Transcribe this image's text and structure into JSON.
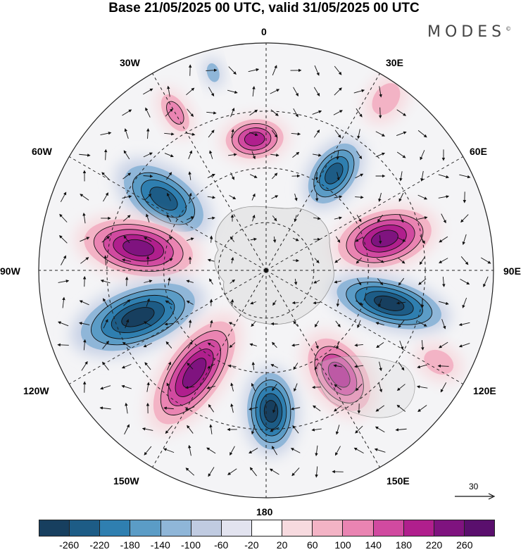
{
  "title": "Base 21/05/2025 00 UTC, valid 31/05/2025 00 UTC",
  "brand": "MODES",
  "brand_mark": "©",
  "longitude_labels": {
    "lon_0": "0",
    "lon_30e": "30E",
    "lon_60e": "60E",
    "lon_90e": "90E",
    "lon_120e": "120E",
    "lon_150e": "150E",
    "lon_180": "180",
    "lon_150w": "150W",
    "lon_120w": "120W",
    "lon_90w": "90W",
    "lon_60w": "60W",
    "lon_30w": "30W"
  },
  "reference_vector": {
    "label": "30"
  },
  "colorbar": {
    "ticks": [
      "-260",
      "-220",
      "-180",
      "-140",
      "-100",
      "-60",
      "-20",
      "20",
      "60",
      "100",
      "140",
      "180",
      "220",
      "260"
    ],
    "colors": [
      "#173f5f",
      "#1d5c86",
      "#2f7fb0",
      "#5b9cc6",
      "#8fb6d8",
      "#c0cbe1",
      "#e2e3ef",
      "#ffffff",
      "#f7dadf",
      "#f3b3c5",
      "#ea84b2",
      "#d14aa0",
      "#b01f8d",
      "#7f137f",
      "#5a0f6d"
    ]
  },
  "chart_data": {
    "type": "map",
    "projection": "south-polar-stereographic",
    "field": "anomaly (shaded) with wind vectors",
    "anomaly_centers": [
      {
        "lon_deg": -15,
        "sign": "negative",
        "strength": "weak"
      },
      {
        "lon_deg": 35,
        "sign": "positive",
        "strength": "weak"
      },
      {
        "lon_deg": -30,
        "sign": "positive",
        "strength": "moderate"
      },
      {
        "lon_deg": -5,
        "sign": "positive",
        "strength": "strong"
      },
      {
        "lon_deg": 35,
        "sign": "negative",
        "strength": "strong"
      },
      {
        "lon_deg": -55,
        "sign": "negative",
        "strength": "strong"
      },
      {
        "lon_deg": -80,
        "sign": "positive",
        "strength": "very strong"
      },
      {
        "lon_deg": 75,
        "sign": "positive",
        "strength": "very strong"
      },
      {
        "lon_deg": 105,
        "sign": "negative",
        "strength": "very strong"
      },
      {
        "lon_deg": -110,
        "sign": "negative",
        "strength": "very strong"
      },
      {
        "lon_deg": -145,
        "sign": "positive",
        "strength": "very strong"
      },
      {
        "lon_deg": 178,
        "sign": "negative",
        "strength": "very strong"
      },
      {
        "lon_deg": 145,
        "sign": "positive",
        "strength": "strong"
      },
      {
        "lon_deg": 118,
        "sign": "positive",
        "strength": "weak"
      }
    ]
  }
}
